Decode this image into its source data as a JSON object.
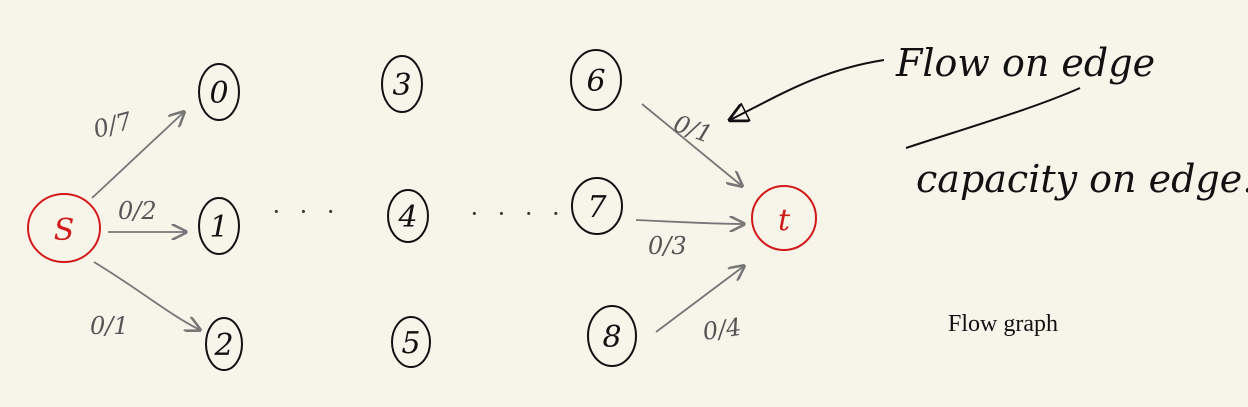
{
  "diagram": {
    "nodes": [
      {
        "id": "s",
        "label": "S",
        "color": "#d11a1a"
      },
      {
        "id": "t",
        "label": "t",
        "color": "#d11a1a"
      },
      {
        "id": "n0",
        "label": "0",
        "color": "#111111"
      },
      {
        "id": "n1",
        "label": "1",
        "color": "#111111"
      },
      {
        "id": "n2",
        "label": "2",
        "color": "#111111"
      },
      {
        "id": "n3",
        "label": "3",
        "color": "#111111"
      },
      {
        "id": "n4",
        "label": "4",
        "color": "#111111"
      },
      {
        "id": "n5",
        "label": "5",
        "color": "#111111"
      },
      {
        "id": "n6",
        "label": "6",
        "color": "#111111"
      },
      {
        "id": "n7",
        "label": "7",
        "color": "#111111"
      },
      {
        "id": "n8",
        "label": "8",
        "color": "#111111"
      }
    ],
    "edges": [
      {
        "from": "s",
        "to": "n0",
        "label": "0/7"
      },
      {
        "from": "s",
        "to": "n1",
        "label": "0/2"
      },
      {
        "from": "s",
        "to": "n2",
        "label": "0/1"
      },
      {
        "from": "n6",
        "to": "t",
        "label": "0/1"
      },
      {
        "from": "n7",
        "to": "t",
        "label": "0/3"
      },
      {
        "from": "n8",
        "to": "t",
        "label": "0/4"
      }
    ],
    "ellipses": [
      "· · ·",
      "· · · ·"
    ],
    "annotations": {
      "flow": "Flow on edge",
      "capacity": "capacity on edge."
    },
    "caption": "Flow graph",
    "colors": {
      "source_sink": "#d11a1a",
      "node": "#111111",
      "edge": "#777777",
      "background": "#f7f4ea"
    }
  }
}
